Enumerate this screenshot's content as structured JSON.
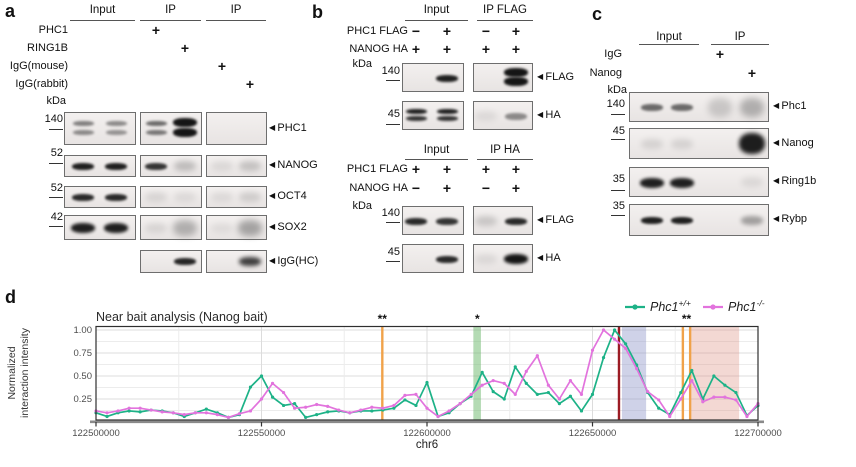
{
  "figure": {
    "panel_a": {
      "tag": "a",
      "groups": [
        "Input",
        "IP",
        "IP"
      ],
      "rows": [
        {
          "label": "PHC1",
          "marks": [
            "",
            "",
            "+",
            "",
            "",
            ""
          ]
        },
        {
          "label": "RING1B",
          "marks": [
            "",
            "",
            "",
            "+",
            "",
            ""
          ]
        },
        {
          "label": "IgG(mouse)",
          "marks": [
            "",
            "",
            "",
            "",
            "+",
            ""
          ]
        },
        {
          "label": "IgG(rabbit)",
          "marks": [
            "",
            "",
            "",
            "",
            "",
            "+"
          ]
        }
      ],
      "kda_unit": "kDa",
      "blots": [
        {
          "kda": "140",
          "target": "PHC1",
          "bands": [
            [
              "dbl",
              0.5
            ],
            [
              "dbl",
              0.45
            ],
            [
              "dbl",
              0.6
            ],
            [
              "dblh",
              1
            ],
            [
              "no",
              0
            ],
            [
              "no",
              0
            ]
          ]
        },
        {
          "kda": "52",
          "target": "NANOG",
          "bands": [
            [
              "b",
              0.95
            ],
            [
              "b",
              0.95
            ],
            [
              "b",
              0.85
            ],
            [
              "sm",
              0.4
            ],
            [
              "sm",
              0.15
            ],
            [
              "sm",
              0.35
            ]
          ]
        },
        {
          "kda": "52",
          "target": "OCT4",
          "bands": [
            [
              "b",
              0.9
            ],
            [
              "b",
              0.9
            ],
            [
              "sm",
              0.18
            ],
            [
              "sm",
              0.14
            ],
            [
              "sm",
              0.14
            ],
            [
              "sm",
              0.25
            ]
          ]
        },
        {
          "kda": "42",
          "target": "SOX2",
          "bands": [
            [
              "bb",
              0.95
            ],
            [
              "bb",
              0.95
            ],
            [
              "sm",
              0.18
            ],
            [
              "smt",
              0.5
            ],
            [
              "sm",
              0.12
            ],
            [
              "smt",
              0.6
            ]
          ]
        },
        {
          "kda": "",
          "target": "IgG(HC)",
          "skip_first": true,
          "bands": [
            [
              "no",
              0
            ],
            [
              "b",
              0.92
            ],
            [
              "no",
              0
            ],
            [
              "smb",
              0.8
            ]
          ]
        }
      ]
    },
    "panel_b": {
      "tag": "b",
      "sections": [
        {
          "groups": [
            "Input",
            "IP FLAG"
          ],
          "rows": [
            {
              "label": "PHC1 FLAG",
              "marks": [
                "−",
                "+",
                "−",
                "+"
              ]
            },
            {
              "label": "NANOG HA",
              "marks": [
                "+",
                "+",
                "+",
                "+"
              ]
            }
          ],
          "kda_unit": "kDa",
          "blots": [
            {
              "kda": "140",
              "target": "FLAG",
              "bands": [
                [
                  "no",
                  0
                ],
                [
                  "b",
                  0.95
                ],
                [
                  "no",
                  0
                ],
                [
                  "dblh",
                  1
                ]
              ]
            },
            {
              "kda": "45",
              "target": "HA",
              "bands": [
                [
                  "dbl",
                  0.95
                ],
                [
                  "dbl",
                  0.95
                ],
                [
                  "sm",
                  0.14
                ],
                [
                  "b",
                  0.45
                ]
              ]
            }
          ]
        },
        {
          "groups": [
            "Input",
            "IP HA"
          ],
          "rows": [
            {
              "label": "PHC1 FLAG",
              "marks": [
                "+",
                "+",
                "+",
                "+"
              ]
            },
            {
              "label": "NANOG HA",
              "marks": [
                "−",
                "+",
                "−",
                "+"
              ]
            }
          ],
          "kda_unit": "kDa",
          "blots": [
            {
              "kda": "140",
              "target": "FLAG",
              "bands": [
                [
                  "b",
                  0.9
                ],
                [
                  "b",
                  0.85
                ],
                [
                  "sm",
                  0.3
                ],
                [
                  "b",
                  0.9
                ]
              ]
            },
            {
              "kda": "45",
              "target": "HA",
              "bands": [
                [
                  "no",
                  0
                ],
                [
                  "b",
                  0.9
                ],
                [
                  "sm",
                  0.15
                ],
                [
                  "bb",
                  1
                ]
              ]
            }
          ]
        }
      ]
    },
    "panel_c": {
      "tag": "c",
      "groups": [
        "Input",
        "IP"
      ],
      "rows": [
        {
          "label": "IgG",
          "marks": [
            "",
            "",
            "+",
            ""
          ]
        },
        {
          "label": "Nanog",
          "marks": [
            "",
            "",
            "",
            "+"
          ]
        }
      ],
      "kda_unit": "kDa",
      "blots": [
        {
          "kda": "140",
          "target": "Phc1",
          "bands": [
            [
              "b",
              0.6
            ],
            [
              "b",
              0.6
            ],
            [
              "smt",
              0.3
            ],
            [
              "smt",
              0.5
            ]
          ]
        },
        {
          "kda": "45",
          "target": "Nanog",
          "bands": [
            [
              "sm",
              0.2
            ],
            [
              "sm",
              0.2
            ],
            [
              "no",
              0
            ],
            [
              "blob",
              1
            ]
          ]
        },
        {
          "kda": "35",
          "target": "Ring1b",
          "bands": [
            [
              "bb",
              0.95
            ],
            [
              "bb",
              0.95
            ],
            [
              "no",
              0
            ],
            [
              "sm",
              0.15
            ]
          ]
        },
        {
          "kda": "35",
          "target": "Rybp",
          "bands": [
            [
              "b",
              0.95
            ],
            [
              "b",
              0.95
            ],
            [
              "no",
              0
            ],
            [
              "smb",
              0.35
            ]
          ]
        }
      ]
    },
    "panel_d": {
      "tag": "d"
    }
  },
  "chart_data": {
    "type": "line",
    "title": "Near bait analysis (Nanog bait)",
    "xlabel": "chr6",
    "ylabel_lines": [
      "Normalized",
      "interaction intensity"
    ],
    "xlim": [
      122500000,
      122700000
    ],
    "ylim": [
      0,
      1.03
    ],
    "xticks": [
      122500000,
      122550000,
      122600000,
      122650000,
      122700000
    ],
    "yticks": [
      0.25,
      0.5,
      0.75,
      1.0
    ],
    "grid": "on",
    "legend_position": "top-right",
    "series": [
      {
        "name": "Phc1+/+",
        "base": "Phc1",
        "sup": "+/+",
        "color": "#1db287",
        "values": [
          0.1,
          0.06,
          0.1,
          0.12,
          0.11,
          0.13,
          0.12,
          0.1,
          0.06,
          0.1,
          0.14,
          0.1,
          0.05,
          0.08,
          0.38,
          0.5,
          0.27,
          0.18,
          0.2,
          0.05,
          0.08,
          0.11,
          0.12,
          0.1,
          0.12,
          0.12,
          0.13,
          0.15,
          0.24,
          0.18,
          0.43,
          0.06,
          0.1,
          0.2,
          0.28,
          0.54,
          0.33,
          0.25,
          0.6,
          0.42,
          0.3,
          0.32,
          0.2,
          0.28,
          0.12,
          0.3,
          0.7,
          1.0,
          0.85,
          0.62,
          0.32,
          0.15,
          0.08,
          0.32,
          0.56,
          0.25,
          0.5,
          0.4,
          0.32,
          0.07,
          0.18
        ]
      },
      {
        "name": "Phc1-/-",
        "base": "Phc1",
        "sup": "-/-",
        "color": "#e273dd",
        "values": [
          0.12,
          0.1,
          0.12,
          0.15,
          0.15,
          0.13,
          0.11,
          0.1,
          0.08,
          0.1,
          0.1,
          0.08,
          0.05,
          0.09,
          0.12,
          0.25,
          0.42,
          0.32,
          0.15,
          0.16,
          0.19,
          0.17,
          0.13,
          0.1,
          0.13,
          0.16,
          0.15,
          0.18,
          0.29,
          0.3,
          0.15,
          0.06,
          0.12,
          0.2,
          0.3,
          0.4,
          0.45,
          0.42,
          0.3,
          0.55,
          0.72,
          0.4,
          0.25,
          0.45,
          0.3,
          0.78,
          1.0,
          0.9,
          0.8,
          0.58,
          0.33,
          0.24,
          0.06,
          0.25,
          0.45,
          0.22,
          0.27,
          0.27,
          0.24,
          0.06,
          0.2
        ]
      }
    ],
    "annotations": {
      "vlines": [
        {
          "x": 122586500,
          "color": "#f0a24a"
        },
        {
          "x": 122658000,
          "color": "#9c1b24"
        },
        {
          "x": 122677300,
          "color": "#f0a24a"
        },
        {
          "x": 122679500,
          "color": "#f0a24a"
        }
      ],
      "bands": [
        {
          "x1": 122614000,
          "x2": 122616300,
          "color": "#69b869",
          "opacity": 0.5
        },
        {
          "x1": 122658900,
          "x2": 122666200,
          "color": "#8d93c7",
          "opacity": 0.42
        },
        {
          "x1": 122679800,
          "x2": 122694300,
          "color": "#dd8f82",
          "opacity": 0.35
        }
      ],
      "stars": [
        {
          "x": 122586500,
          "text": "**"
        },
        {
          "x": 122615200,
          "text": "*"
        },
        {
          "x": 122678400,
          "text": "**"
        }
      ]
    }
  }
}
